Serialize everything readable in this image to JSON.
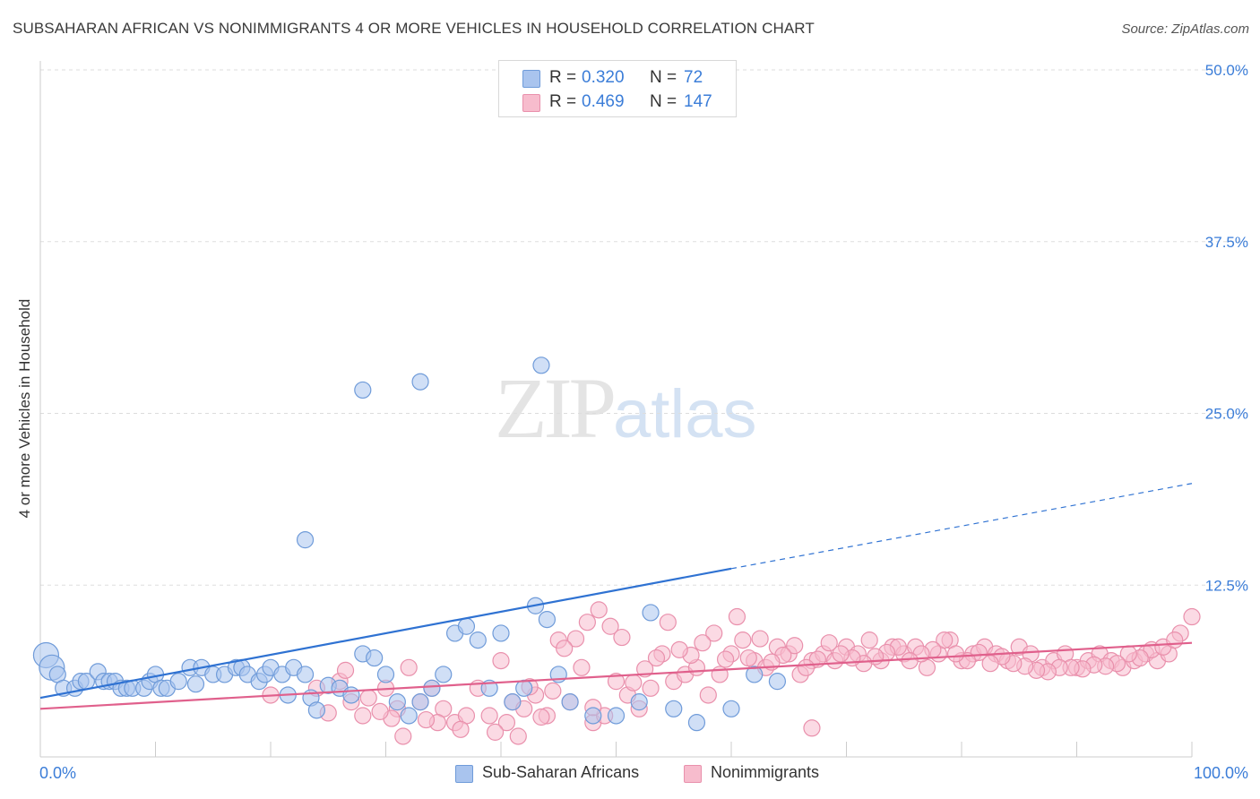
{
  "title": "SUBSAHARAN AFRICAN VS NONIMMIGRANTS 4 OR MORE VEHICLES IN HOUSEHOLD CORRELATION CHART",
  "source": "Source: ZipAtlas.com",
  "watermark": {
    "zip": "ZIP",
    "atlas": "atlas"
  },
  "legend": {
    "rows": [
      {
        "r_label": "R =",
        "r_value": "0.320",
        "n_label": "N =",
        "n_value": "72",
        "color": "#a9c4ee",
        "border": "#6f9bd9"
      },
      {
        "r_label": "R =",
        "r_value": "0.469",
        "n_label": "N =",
        "n_value": "147",
        "color": "#f7bccd",
        "border": "#e990ac"
      }
    ]
  },
  "bottom_legend": [
    {
      "label": "Sub-Saharan Africans",
      "color": "#a9c4ee",
      "border": "#6f9bd9"
    },
    {
      "label": "Nonimmigrants",
      "color": "#f7bccd",
      "border": "#e990ac"
    }
  ],
  "chart_data": {
    "type": "scatter",
    "title": "SUBSAHARAN AFRICAN VS NONIMMIGRANTS 4 OR MORE VEHICLES IN HOUSEHOLD CORRELATION CHART",
    "xlabel": "",
    "ylabel": "4 or more Vehicles in Household",
    "xlim": [
      0,
      100
    ],
    "ylim": [
      0,
      50
    ],
    "x_tick_labels": [
      "0.0%",
      "100.0%"
    ],
    "y_ticks": [
      12.5,
      25.0,
      37.5,
      50.0
    ],
    "y_tick_labels": [
      "12.5%",
      "25.0%",
      "37.5%",
      "50.0%"
    ],
    "grid": true,
    "legend_placement": "top-center",
    "series": [
      {
        "name": "Sub-Saharan Africans",
        "color": "#a9c4ee",
        "edge": "#6f9bd9",
        "line_color": "#2f72d2",
        "trend": {
          "x0": 0,
          "y0": 4.3,
          "x1": 60,
          "y1": 13.7,
          "x_dash_end": 100,
          "y_dash_end": 19.9
        },
        "points": [
          [
            0.5,
            7.4
          ],
          [
            1,
            6.5
          ],
          [
            1.5,
            6
          ],
          [
            2,
            5
          ],
          [
            3,
            5
          ],
          [
            3.5,
            5.5
          ],
          [
            4,
            5.5
          ],
          [
            5,
            6.2
          ],
          [
            5.5,
            5.5
          ],
          [
            6,
            5.5
          ],
          [
            6.5,
            5.5
          ],
          [
            7,
            5
          ],
          [
            7.5,
            5
          ],
          [
            8,
            5
          ],
          [
            9,
            5
          ],
          [
            9.5,
            5.5
          ],
          [
            10,
            6
          ],
          [
            10.5,
            5
          ],
          [
            11,
            5
          ],
          [
            12,
            5.5
          ],
          [
            13,
            6.5
          ],
          [
            13.5,
            5.3
          ],
          [
            14,
            6.5
          ],
          [
            15,
            6
          ],
          [
            16,
            6
          ],
          [
            17,
            6.5
          ],
          [
            17.5,
            6.5
          ],
          [
            18,
            6
          ],
          [
            19,
            5.5
          ],
          [
            19.5,
            6
          ],
          [
            20,
            6.5
          ],
          [
            21,
            6
          ],
          [
            21.5,
            4.5
          ],
          [
            22,
            6.5
          ],
          [
            23,
            6
          ],
          [
            23.5,
            4.3
          ],
          [
            24,
            3.4
          ],
          [
            25,
            5.2
          ],
          [
            26,
            5
          ],
          [
            27,
            4.5
          ],
          [
            28,
            7.5
          ],
          [
            29,
            7.2
          ],
          [
            30,
            6
          ],
          [
            31,
            4
          ],
          [
            32,
            3
          ],
          [
            33,
            4
          ],
          [
            34,
            5
          ],
          [
            35,
            6
          ],
          [
            36,
            9
          ],
          [
            37,
            9.5
          ],
          [
            38,
            8.5
          ],
          [
            39,
            5
          ],
          [
            40,
            9
          ],
          [
            41,
            4
          ],
          [
            42,
            5
          ],
          [
            43,
            11
          ],
          [
            44,
            10
          ],
          [
            45,
            6
          ],
          [
            46,
            4
          ],
          [
            48,
            3
          ],
          [
            50,
            3
          ],
          [
            52,
            4
          ],
          [
            53,
            10.5
          ],
          [
            55,
            3.5
          ],
          [
            57,
            2.5
          ],
          [
            60,
            3.5
          ],
          [
            62,
            6
          ],
          [
            64,
            5.5
          ],
          [
            23,
            15.8
          ],
          [
            28,
            26.7
          ],
          [
            33,
            27.3
          ],
          [
            43.5,
            28.5
          ]
        ]
      },
      {
        "name": "Nonimmigrants",
        "color": "#f7bccd",
        "edge": "#e990ac",
        "line_color": "#e0608c",
        "trend": {
          "x0": 0,
          "y0": 3.5,
          "x1": 100,
          "y1": 8.3
        },
        "points": [
          [
            20,
            4.5
          ],
          [
            24,
            5
          ],
          [
            26,
            5.5
          ],
          [
            27,
            4
          ],
          [
            28,
            3
          ],
          [
            30,
            5
          ],
          [
            31,
            3.5
          ],
          [
            32,
            6.5
          ],
          [
            33,
            4
          ],
          [
            34,
            5
          ],
          [
            35,
            3.5
          ],
          [
            36,
            2.5
          ],
          [
            37,
            3
          ],
          [
            38,
            5
          ],
          [
            39,
            3
          ],
          [
            40,
            7
          ],
          [
            41,
            4
          ],
          [
            42,
            3.5
          ],
          [
            43,
            4.5
          ],
          [
            44,
            3
          ],
          [
            45,
            8.5
          ],
          [
            46,
            4
          ],
          [
            47,
            6.5
          ],
          [
            48,
            2.5
          ],
          [
            49,
            3
          ],
          [
            50,
            5.5
          ],
          [
            51,
            4.5
          ],
          [
            52,
            3.5
          ],
          [
            53,
            5
          ],
          [
            54,
            7.5
          ],
          [
            55,
            5.5
          ],
          [
            56,
            6
          ],
          [
            57,
            6.5
          ],
          [
            58,
            4.5
          ],
          [
            59,
            6
          ],
          [
            60,
            7.5
          ],
          [
            61,
            8.5
          ],
          [
            62,
            7
          ],
          [
            63,
            6.5
          ],
          [
            64,
            8
          ],
          [
            65,
            7.5
          ],
          [
            66,
            6
          ],
          [
            67,
            7
          ],
          [
            68,
            7.5
          ],
          [
            69,
            7
          ],
          [
            70,
            8
          ],
          [
            71,
            7.5
          ],
          [
            72,
            8.5
          ],
          [
            73,
            7
          ],
          [
            74,
            8
          ],
          [
            75,
            7.5
          ],
          [
            76,
            8
          ],
          [
            77,
            6.5
          ],
          [
            78,
            7.5
          ],
          [
            79,
            8.5
          ],
          [
            80,
            7
          ],
          [
            81,
            7.5
          ],
          [
            82,
            8
          ],
          [
            83,
            7.5
          ],
          [
            84,
            7
          ],
          [
            85,
            8
          ],
          [
            86,
            7.5
          ],
          [
            87,
            6.5
          ],
          [
            88,
            7
          ],
          [
            89,
            7.5
          ],
          [
            90,
            6.5
          ],
          [
            91,
            7
          ],
          [
            92,
            7.5
          ],
          [
            93,
            7
          ],
          [
            94,
            6.5
          ],
          [
            95,
            7
          ],
          [
            96,
            7.5
          ],
          [
            97,
            7
          ],
          [
            98,
            7.5
          ],
          [
            99,
            9
          ],
          [
            100,
            10.2
          ],
          [
            96.5,
            7.8
          ],
          [
            97.5,
            8
          ],
          [
            98.5,
            8.5
          ],
          [
            95.5,
            7.2
          ],
          [
            94.5,
            7.5
          ],
          [
            93.5,
            6.8
          ],
          [
            92.5,
            6.6
          ],
          [
            91.5,
            6.7
          ],
          [
            90.5,
            6.4
          ],
          [
            89.5,
            6.5
          ],
          [
            88.5,
            6.5
          ],
          [
            87.5,
            6.2
          ],
          [
            86.5,
            6.3
          ],
          [
            85.5,
            6.6
          ],
          [
            84.5,
            6.8
          ],
          [
            83.5,
            7.3
          ],
          [
            82.5,
            6.8
          ],
          [
            81.5,
            7.6
          ],
          [
            80.5,
            7
          ],
          [
            79.5,
            7.5
          ],
          [
            78.5,
            8.5
          ],
          [
            77.5,
            7.8
          ],
          [
            76.5,
            7.5
          ],
          [
            75.5,
            7
          ],
          [
            74.5,
            8
          ],
          [
            73.5,
            7.6
          ],
          [
            72.5,
            7.3
          ],
          [
            71.5,
            6.8
          ],
          [
            70.5,
            7.2
          ],
          [
            69.5,
            7.5
          ],
          [
            68.5,
            8.3
          ],
          [
            67.5,
            7.1
          ],
          [
            66.5,
            6.5
          ],
          [
            65.5,
            8.1
          ],
          [
            64.5,
            7.4
          ],
          [
            63.5,
            6.9
          ],
          [
            62.5,
            8.6
          ],
          [
            61.5,
            7.2
          ],
          [
            60.5,
            10.2
          ],
          [
            59.5,
            7.1
          ],
          [
            58.5,
            9
          ],
          [
            57.5,
            8.3
          ],
          [
            56.5,
            7.4
          ],
          [
            55.5,
            7.8
          ],
          [
            54.5,
            9.8
          ],
          [
            53.5,
            7.2
          ],
          [
            52.5,
            6.4
          ],
          [
            51.5,
            5.4
          ],
          [
            50.5,
            8.7
          ],
          [
            49.5,
            9.5
          ],
          [
            48.5,
            10.7
          ],
          [
            47.5,
            9.8
          ],
          [
            46.5,
            8.6
          ],
          [
            45.5,
            7.9
          ],
          [
            44.5,
            4.8
          ],
          [
            43.5,
            2.9
          ],
          [
            42.5,
            5.1
          ],
          [
            41.5,
            1.5
          ],
          [
            40.5,
            2.5
          ],
          [
            39.5,
            1.8
          ],
          [
            36.5,
            2
          ],
          [
            34.5,
            2.5
          ],
          [
            33.5,
            2.7
          ],
          [
            31.5,
            1.5
          ],
          [
            30.5,
            2.8
          ],
          [
            29.5,
            3.3
          ],
          [
            28.5,
            4.3
          ],
          [
            67,
            2.1
          ],
          [
            25,
            3.2
          ],
          [
            26.5,
            6.3
          ],
          [
            48,
            3.6
          ]
        ]
      }
    ]
  }
}
